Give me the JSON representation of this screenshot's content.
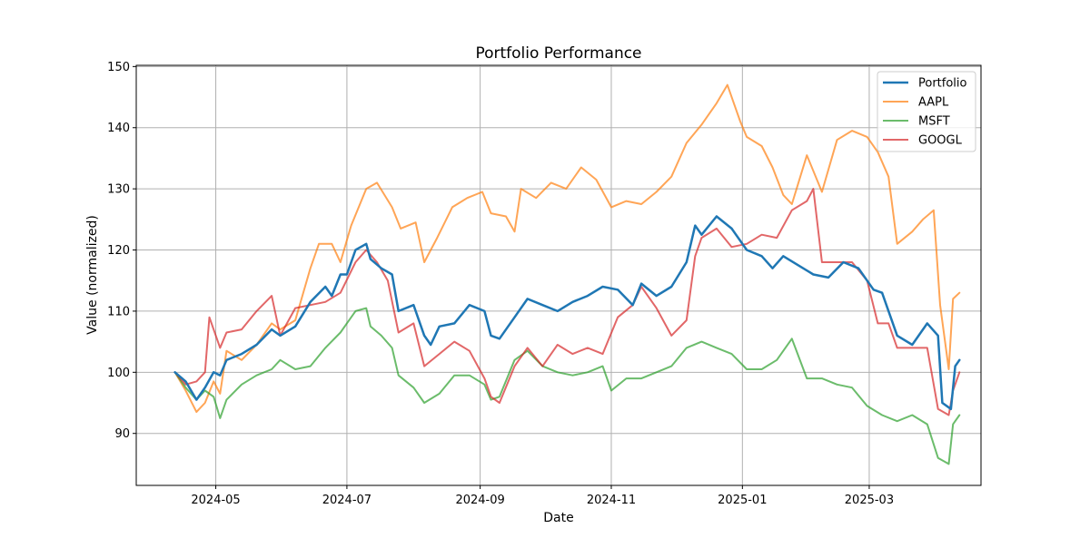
{
  "chart_data": {
    "type": "line",
    "title": "Portfolio Performance",
    "xlabel": "Date",
    "ylabel": "Value (normalized)",
    "xlim": [
      "2024-03-25",
      "2025-04-22"
    ],
    "ylim": [
      81.5,
      150.2
    ],
    "x_ticks": [
      "2024-05",
      "2024-07",
      "2024-09",
      "2024-11",
      "2025-01",
      "2025-03"
    ],
    "y_ticks": [
      90,
      100,
      110,
      120,
      130,
      140,
      150
    ],
    "grid": true,
    "legend_position": "top-right",
    "series": [
      {
        "name": "Portfolio",
        "color": "#1f77b4",
        "width": 2.5,
        "opacity": 1,
        "points": [
          [
            "2024-04-12",
            100
          ],
          [
            "2024-04-17",
            98.5
          ],
          [
            "2024-04-22",
            95.5
          ],
          [
            "2024-04-26",
            97.5
          ],
          [
            "2024-04-30",
            100
          ],
          [
            "2024-05-03",
            99.5
          ],
          [
            "2024-05-06",
            102
          ],
          [
            "2024-05-13",
            103
          ],
          [
            "2024-05-20",
            104.5
          ],
          [
            "2024-05-27",
            107
          ],
          [
            "2024-05-31",
            106
          ],
          [
            "2024-06-07",
            107.5
          ],
          [
            "2024-06-14",
            111.5
          ],
          [
            "2024-06-21",
            114
          ],
          [
            "2024-06-24",
            112.5
          ],
          [
            "2024-06-28",
            116
          ],
          [
            "2024-07-01",
            116
          ],
          [
            "2024-07-05",
            120
          ],
          [
            "2024-07-10",
            121
          ],
          [
            "2024-07-12",
            118.5
          ],
          [
            "2024-07-17",
            117
          ],
          [
            "2024-07-22",
            116
          ],
          [
            "2024-07-25",
            110
          ],
          [
            "2024-08-01",
            111
          ],
          [
            "2024-08-06",
            106
          ],
          [
            "2024-08-09",
            104.5
          ],
          [
            "2024-08-13",
            107.5
          ],
          [
            "2024-08-20",
            108
          ],
          [
            "2024-08-27",
            111
          ],
          [
            "2024-09-03",
            110
          ],
          [
            "2024-09-06",
            106
          ],
          [
            "2024-09-10",
            105.5
          ],
          [
            "2024-09-17",
            109
          ],
          [
            "2024-09-23",
            112
          ],
          [
            "2024-09-30",
            111
          ],
          [
            "2024-10-07",
            110
          ],
          [
            "2024-10-14",
            111.5
          ],
          [
            "2024-10-21",
            112.5
          ],
          [
            "2024-10-28",
            114
          ],
          [
            "2024-11-04",
            113.5
          ],
          [
            "2024-11-11",
            111
          ],
          [
            "2024-11-15",
            114.5
          ],
          [
            "2024-11-22",
            112.5
          ],
          [
            "2024-11-29",
            114
          ],
          [
            "2024-12-06",
            118
          ],
          [
            "2024-12-10",
            124
          ],
          [
            "2024-12-13",
            122.5
          ],
          [
            "2024-12-20",
            125.5
          ],
          [
            "2024-12-27",
            123.5
          ],
          [
            "2025-01-03",
            120
          ],
          [
            "2025-01-10",
            119
          ],
          [
            "2025-01-15",
            117
          ],
          [
            "2025-01-20",
            119
          ],
          [
            "2025-01-27",
            117.5
          ],
          [
            "2025-02-03",
            116
          ],
          [
            "2025-02-10",
            115.5
          ],
          [
            "2025-02-17",
            118
          ],
          [
            "2025-02-24",
            117
          ],
          [
            "2025-03-03",
            113.5
          ],
          [
            "2025-03-07",
            113
          ],
          [
            "2025-03-14",
            106
          ],
          [
            "2025-03-21",
            104.5
          ],
          [
            "2025-03-28",
            108
          ],
          [
            "2025-04-02",
            106
          ],
          [
            "2025-04-04",
            95
          ],
          [
            "2025-04-08",
            94
          ],
          [
            "2025-04-10",
            101
          ],
          [
            "2025-04-12",
            102
          ]
        ]
      },
      {
        "name": "AAPL",
        "color": "#ff7f0e",
        "width": 2,
        "opacity": 0.7,
        "points": [
          [
            "2024-04-12",
            100
          ],
          [
            "2024-04-17",
            97
          ],
          [
            "2024-04-22",
            93.5
          ],
          [
            "2024-04-26",
            95
          ],
          [
            "2024-04-30",
            98.5
          ],
          [
            "2024-05-03",
            96.5
          ],
          [
            "2024-05-06",
            103.5
          ],
          [
            "2024-05-13",
            102
          ],
          [
            "2024-05-20",
            104.5
          ],
          [
            "2024-05-27",
            108
          ],
          [
            "2024-05-31",
            107
          ],
          [
            "2024-06-07",
            108.5
          ],
          [
            "2024-06-14",
            117
          ],
          [
            "2024-06-18",
            121
          ],
          [
            "2024-06-24",
            121
          ],
          [
            "2024-06-28",
            118
          ],
          [
            "2024-07-03",
            124
          ],
          [
            "2024-07-10",
            130
          ],
          [
            "2024-07-15",
            131
          ],
          [
            "2024-07-22",
            127
          ],
          [
            "2024-07-26",
            123.5
          ],
          [
            "2024-08-02",
            124.5
          ],
          [
            "2024-08-06",
            118
          ],
          [
            "2024-08-12",
            122
          ],
          [
            "2024-08-19",
            127
          ],
          [
            "2024-08-26",
            128.5
          ],
          [
            "2024-09-02",
            129.5
          ],
          [
            "2024-09-06",
            126
          ],
          [
            "2024-09-13",
            125.5
          ],
          [
            "2024-09-17",
            123
          ],
          [
            "2024-09-20",
            130
          ],
          [
            "2024-09-27",
            128.5
          ],
          [
            "2024-10-04",
            131
          ],
          [
            "2024-10-11",
            130
          ],
          [
            "2024-10-18",
            133.5
          ],
          [
            "2024-10-25",
            131.5
          ],
          [
            "2024-11-01",
            127
          ],
          [
            "2024-11-08",
            128
          ],
          [
            "2024-11-15",
            127.5
          ],
          [
            "2024-11-22",
            129.5
          ],
          [
            "2024-11-29",
            132
          ],
          [
            "2024-12-06",
            137.5
          ],
          [
            "2024-12-13",
            140.5
          ],
          [
            "2024-12-20",
            144
          ],
          [
            "2024-12-25",
            147
          ],
          [
            "2024-12-31",
            141
          ],
          [
            "2025-01-03",
            138.5
          ],
          [
            "2025-01-10",
            137
          ],
          [
            "2025-01-15",
            133.5
          ],
          [
            "2025-01-20",
            129
          ],
          [
            "2025-01-24",
            127.5
          ],
          [
            "2025-01-31",
            135.5
          ],
          [
            "2025-02-07",
            129.5
          ],
          [
            "2025-02-14",
            138
          ],
          [
            "2025-02-21",
            139.5
          ],
          [
            "2025-02-28",
            138.5
          ],
          [
            "2025-03-05",
            136
          ],
          [
            "2025-03-10",
            132
          ],
          [
            "2025-03-14",
            121
          ],
          [
            "2025-03-21",
            123
          ],
          [
            "2025-03-26",
            125
          ],
          [
            "2025-03-31",
            126.5
          ],
          [
            "2025-04-03",
            111
          ],
          [
            "2025-04-07",
            100.5
          ],
          [
            "2025-04-09",
            112
          ],
          [
            "2025-04-12",
            113
          ]
        ]
      },
      {
        "name": "MSFT",
        "color": "#2ca02c",
        "width": 2,
        "opacity": 0.7,
        "points": [
          [
            "2024-04-12",
            100
          ],
          [
            "2024-04-17",
            97.5
          ],
          [
            "2024-04-22",
            95.5
          ],
          [
            "2024-04-26",
            97
          ],
          [
            "2024-04-30",
            96
          ],
          [
            "2024-05-03",
            92.5
          ],
          [
            "2024-05-06",
            95.5
          ],
          [
            "2024-05-13",
            98
          ],
          [
            "2024-05-20",
            99.5
          ],
          [
            "2024-05-27",
            100.5
          ],
          [
            "2024-05-31",
            102
          ],
          [
            "2024-06-07",
            100.5
          ],
          [
            "2024-06-14",
            101
          ],
          [
            "2024-06-21",
            104
          ],
          [
            "2024-06-28",
            106.5
          ],
          [
            "2024-07-05",
            110
          ],
          [
            "2024-07-10",
            110.5
          ],
          [
            "2024-07-12",
            107.5
          ],
          [
            "2024-07-17",
            106
          ],
          [
            "2024-07-22",
            104
          ],
          [
            "2024-07-25",
            99.5
          ],
          [
            "2024-08-01",
            97.5
          ],
          [
            "2024-08-06",
            95
          ],
          [
            "2024-08-13",
            96.5
          ],
          [
            "2024-08-20",
            99.5
          ],
          [
            "2024-08-27",
            99.5
          ],
          [
            "2024-09-03",
            98
          ],
          [
            "2024-09-06",
            95.5
          ],
          [
            "2024-09-10",
            96
          ],
          [
            "2024-09-17",
            102
          ],
          [
            "2024-09-23",
            103.5
          ],
          [
            "2024-09-30",
            101
          ],
          [
            "2024-10-07",
            100
          ],
          [
            "2024-10-14",
            99.5
          ],
          [
            "2024-10-21",
            100
          ],
          [
            "2024-10-28",
            101
          ],
          [
            "2024-11-01",
            97
          ],
          [
            "2024-11-08",
            99
          ],
          [
            "2024-11-15",
            99
          ],
          [
            "2024-11-22",
            100
          ],
          [
            "2024-11-29",
            101
          ],
          [
            "2024-12-06",
            104
          ],
          [
            "2024-12-13",
            105
          ],
          [
            "2024-12-20",
            104
          ],
          [
            "2024-12-27",
            103
          ],
          [
            "2025-01-03",
            100.5
          ],
          [
            "2025-01-10",
            100.5
          ],
          [
            "2025-01-17",
            102
          ],
          [
            "2025-01-24",
            105.5
          ],
          [
            "2025-01-31",
            99
          ],
          [
            "2025-02-07",
            99
          ],
          [
            "2025-02-14",
            98
          ],
          [
            "2025-02-21",
            97.5
          ],
          [
            "2025-02-28",
            94.5
          ],
          [
            "2025-03-07",
            93
          ],
          [
            "2025-03-14",
            92
          ],
          [
            "2025-03-21",
            93
          ],
          [
            "2025-03-28",
            91.5
          ],
          [
            "2025-04-02",
            86
          ],
          [
            "2025-04-07",
            85
          ],
          [
            "2025-04-09",
            91.5
          ],
          [
            "2025-04-12",
            93
          ]
        ]
      },
      {
        "name": "GOOGL",
        "color": "#d62728",
        "width": 2,
        "opacity": 0.7,
        "points": [
          [
            "2024-04-12",
            100
          ],
          [
            "2024-04-17",
            98
          ],
          [
            "2024-04-22",
            98.5
          ],
          [
            "2024-04-26",
            100
          ],
          [
            "2024-04-28",
            109
          ],
          [
            "2024-05-03",
            104
          ],
          [
            "2024-05-06",
            106.5
          ],
          [
            "2024-05-13",
            107
          ],
          [
            "2024-05-20",
            110
          ],
          [
            "2024-05-27",
            112.5
          ],
          [
            "2024-05-31",
            106
          ],
          [
            "2024-06-07",
            110.5
          ],
          [
            "2024-06-14",
            111
          ],
          [
            "2024-06-21",
            111.5
          ],
          [
            "2024-06-28",
            113
          ],
          [
            "2024-07-05",
            118
          ],
          [
            "2024-07-10",
            120
          ],
          [
            "2024-07-15",
            118
          ],
          [
            "2024-07-20",
            115
          ],
          [
            "2024-07-25",
            106.5
          ],
          [
            "2024-08-01",
            108
          ],
          [
            "2024-08-06",
            101
          ],
          [
            "2024-08-13",
            103
          ],
          [
            "2024-08-20",
            105
          ],
          [
            "2024-08-27",
            103.5
          ],
          [
            "2024-09-03",
            99
          ],
          [
            "2024-09-06",
            96
          ],
          [
            "2024-09-10",
            95
          ],
          [
            "2024-09-17",
            101
          ],
          [
            "2024-09-23",
            104
          ],
          [
            "2024-09-30",
            101
          ],
          [
            "2024-10-07",
            104.5
          ],
          [
            "2024-10-14",
            103
          ],
          [
            "2024-10-21",
            104
          ],
          [
            "2024-10-28",
            103
          ],
          [
            "2024-11-04",
            109
          ],
          [
            "2024-11-11",
            111
          ],
          [
            "2024-11-15",
            114
          ],
          [
            "2024-11-22",
            110.5
          ],
          [
            "2024-11-29",
            106
          ],
          [
            "2024-12-06",
            108.5
          ],
          [
            "2024-12-10",
            119
          ],
          [
            "2024-12-13",
            122
          ],
          [
            "2024-12-20",
            123.5
          ],
          [
            "2024-12-27",
            120.5
          ],
          [
            "2025-01-03",
            121
          ],
          [
            "2025-01-10",
            122.5
          ],
          [
            "2025-01-17",
            122
          ],
          [
            "2025-01-24",
            126.5
          ],
          [
            "2025-01-31",
            128
          ],
          [
            "2025-02-03",
            130
          ],
          [
            "2025-02-07",
            118
          ],
          [
            "2025-02-14",
            118
          ],
          [
            "2025-02-21",
            118
          ],
          [
            "2025-02-28",
            115
          ],
          [
            "2025-03-05",
            108
          ],
          [
            "2025-03-10",
            108
          ],
          [
            "2025-03-14",
            104
          ],
          [
            "2025-03-21",
            104
          ],
          [
            "2025-03-28",
            104
          ],
          [
            "2025-04-02",
            94
          ],
          [
            "2025-04-07",
            93
          ],
          [
            "2025-04-09",
            97
          ],
          [
            "2025-04-12",
            100
          ]
        ]
      }
    ]
  }
}
